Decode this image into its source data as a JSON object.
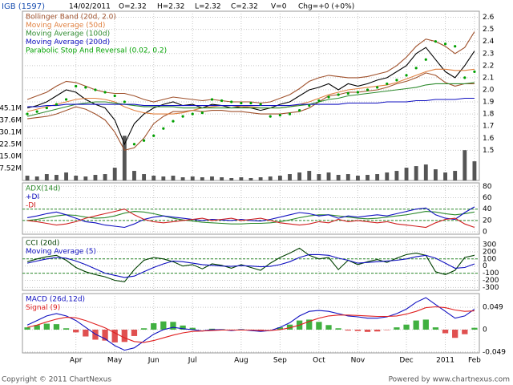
{
  "header": {
    "symbol": "IGB (1597)",
    "date": "14/02/2011",
    "open": "O=2.32",
    "high": "H=2.32",
    "low": "L=2.32",
    "close": "C=2.32",
    "volume": "V=0",
    "change": "Chg=+0 (+0%)"
  },
  "footer": {
    "copyright": "Copyright © 2011 ChartNexus",
    "powered_by": "Powered by www.chartnexus.com"
  },
  "chart_data": [
    {
      "type": "line",
      "categories": [
        null,
        null,
        null,
        null,
        null,
        "Apr",
        null,
        null,
        null,
        "May",
        null,
        null,
        null,
        "Jun",
        null,
        null,
        null,
        "Jul",
        null,
        null,
        null,
        null,
        "Aug",
        null,
        null,
        null,
        "Sep",
        null,
        null,
        null,
        "Oct",
        null,
        null,
        null,
        "Nov",
        null,
        null,
        null,
        null,
        "Dec",
        null,
        null,
        null,
        "2011",
        null,
        null,
        "Feb"
      ],
      "ylim": [
        1.25,
        2.65
      ],
      "yticks": [
        1.5,
        1.6,
        1.7,
        1.8,
        1.9,
        {
          "value": 2,
          "label": "2.0"
        },
        2.1,
        2.2,
        2.3,
        2.4,
        2.5,
        2.6
      ],
      "grid": true,
      "volume": {
        "color": "#555555",
        "ylim": [
          0,
          106
        ],
        "yticks": [
          {
            "value": 7.52,
            "label": "7.52M"
          },
          {
            "value": 15.0,
            "label": "15.0M"
          },
          {
            "value": 22.5,
            "label": "22.5M"
          },
          {
            "value": 30.1,
            "label": "30.1M"
          },
          {
            "value": 37.6,
            "label": "37.6M"
          },
          {
            "value": 45.1,
            "label": "45.1M"
          }
        ],
        "values": [
          3,
          2.5,
          4,
          3.5,
          5,
          3,
          2.5,
          3.5,
          4,
          8,
          28,
          6,
          4,
          3,
          2.5,
          3,
          2,
          2.5,
          2,
          2.5,
          2,
          1.5,
          2,
          1.5,
          2,
          2.5,
          3,
          4,
          5,
          6,
          4,
          5,
          3.5,
          4,
          3,
          3.5,
          4,
          5,
          6,
          8,
          9,
          10,
          7,
          5,
          6,
          19,
          12
        ]
      },
      "series": [
        {
          "color": "#000000",
          "values": [
            1.85,
            1.87,
            1.9,
            1.95,
            2.0,
            1.98,
            1.92,
            1.88,
            1.85,
            1.75,
            1.55,
            1.72,
            1.8,
            1.85,
            1.88,
            1.9,
            1.87,
            1.88,
            1.85,
            1.88,
            1.87,
            1.85,
            1.86,
            1.85,
            1.83,
            1.85,
            1.88,
            1.9,
            1.95,
            2.0,
            2.02,
            2.05,
            2.0,
            2.05,
            2.03,
            2.05,
            2.08,
            2.1,
            2.15,
            2.2,
            2.3,
            2.35,
            2.25,
            2.15,
            2.1,
            2.2,
            2.32
          ]
        },
        {
          "name": "Bollinger Band (20d, 2.0)",
          "color": "#a0522d",
          "values": [
            1.92,
            1.95,
            1.98,
            2.03,
            2.07,
            2.06,
            2.03,
            2.0,
            1.98,
            1.97,
            1.97,
            1.95,
            1.92,
            1.9,
            1.92,
            1.94,
            1.93,
            1.92,
            1.91,
            1.92,
            1.91,
            1.9,
            1.9,
            1.9,
            1.89,
            1.9,
            1.93,
            1.96,
            2.01,
            2.07,
            2.1,
            2.12,
            2.11,
            2.1,
            2.1,
            2.11,
            2.13,
            2.15,
            2.2,
            2.27,
            2.36,
            2.42,
            2.4,
            2.36,
            2.3,
            2.35,
            2.48
          ],
          "lower": [
            1.76,
            1.77,
            1.78,
            1.8,
            1.83,
            1.86,
            1.84,
            1.8,
            1.75,
            1.65,
            1.5,
            1.52,
            1.6,
            1.72,
            1.78,
            1.82,
            1.82,
            1.83,
            1.82,
            1.83,
            1.83,
            1.82,
            1.82,
            1.81,
            1.8,
            1.8,
            1.8,
            1.81,
            1.82,
            1.85,
            1.9,
            1.95,
            1.96,
            1.98,
            1.98,
            1.99,
            2.0,
            2.02,
            2.05,
            2.07,
            2.1,
            2.14,
            2.12,
            2.06,
            2.03,
            2.05,
            2.05
          ]
        },
        {
          "name": "Moving Average (50d)",
          "color": "#e08040",
          "values": [
            1.82,
            1.84,
            1.86,
            1.88,
            1.9,
            1.92,
            1.93,
            1.93,
            1.92,
            1.9,
            1.86,
            1.83,
            1.81,
            1.8,
            1.8,
            1.8,
            1.81,
            1.83,
            1.85,
            1.86,
            1.87,
            1.87,
            1.86,
            1.86,
            1.85,
            1.85,
            1.85,
            1.86,
            1.88,
            1.9,
            1.93,
            1.96,
            1.98,
            2.0,
            2.01,
            2.02,
            2.03,
            2.04,
            2.06,
            2.09,
            2.12,
            2.15,
            2.17,
            2.17,
            2.16,
            2.16,
            2.17
          ]
        },
        {
          "name": "Moving Average (100d)",
          "color": "#2e8b2e",
          "values": [
            1.78,
            1.8,
            1.82,
            1.84,
            1.86,
            1.88,
            1.89,
            1.9,
            1.9,
            1.89,
            1.88,
            1.87,
            1.86,
            1.86,
            1.86,
            1.86,
            1.85,
            1.85,
            1.85,
            1.85,
            1.85,
            1.85,
            1.85,
            1.85,
            1.85,
            1.85,
            1.85,
            1.86,
            1.87,
            1.88,
            1.9,
            1.92,
            1.93,
            1.95,
            1.96,
            1.97,
            1.98,
            1.99,
            2.0,
            2.01,
            2.02,
            2.04,
            2.05,
            2.05,
            2.05,
            2.05,
            2.06
          ]
        },
        {
          "name": "Moving Average (200d)",
          "color": "#1010c0",
          "values": [
            1.86,
            1.86,
            1.87,
            1.87,
            1.88,
            1.88,
            1.88,
            1.88,
            1.88,
            1.88,
            1.88,
            1.88,
            1.87,
            1.87,
            1.87,
            1.87,
            1.87,
            1.87,
            1.87,
            1.87,
            1.87,
            1.87,
            1.87,
            1.87,
            1.87,
            1.87,
            1.87,
            1.87,
            1.88,
            1.88,
            1.88,
            1.88,
            1.88,
            1.89,
            1.89,
            1.89,
            1.89,
            1.9,
            1.9,
            1.9,
            1.91,
            1.91,
            1.92,
            1.92,
            1.92,
            1.93,
            1.93
          ]
        },
        {
          "name": "Parabolic Stop And Reversal (0.02, 0.2)",
          "color": "#00a000",
          "marker": "dot",
          "values": [
            1.8,
            1.82,
            1.85,
            1.88,
            1.92,
            2.03,
            2.02,
            2.0,
            1.98,
            1.95,
            1.9,
            1.55,
            1.58,
            1.62,
            1.68,
            1.74,
            1.78,
            1.8,
            1.81,
            1.92,
            1.91,
            1.9,
            1.89,
            1.89,
            1.88,
            1.78,
            1.79,
            1.8,
            1.83,
            1.87,
            1.91,
            1.94,
            1.96,
            1.97,
            1.98,
            2.0,
            2.02,
            2.05,
            2.08,
            2.12,
            2.18,
            2.25,
            2.4,
            2.38,
            2.36,
            2.1,
            2.15
          ]
        }
      ]
    },
    {
      "type": "line",
      "ylim": [
        -4,
        86
      ],
      "yticks": [
        0,
        20,
        40,
        60,
        80
      ],
      "grid": true,
      "ref_lines": [
        20,
        40
      ],
      "series": [
        {
          "name": "ADX(14d)",
          "color": "#2e8b2e",
          "values": [
            20,
            22,
            25,
            28,
            30,
            29,
            26,
            24,
            25,
            28,
            33,
            36,
            35,
            32,
            28,
            24,
            21,
            19,
            17,
            16,
            15,
            14,
            14,
            15,
            15,
            16,
            18,
            21,
            25,
            28,
            30,
            30,
            28,
            26,
            24,
            23,
            24,
            26,
            28,
            30,
            33,
            36,
            35,
            32,
            30,
            32,
            35
          ]
        },
        {
          "name": "+DI",
          "color": "#1010c0",
          "values": [
            25,
            28,
            32,
            35,
            30,
            24,
            18,
            16,
            12,
            10,
            8,
            14,
            22,
            26,
            28,
            26,
            24,
            22,
            20,
            22,
            21,
            20,
            22,
            20,
            19,
            22,
            26,
            30,
            34,
            32,
            28,
            30,
            24,
            28,
            26,
            28,
            30,
            28,
            32,
            36,
            40,
            42,
            30,
            24,
            22,
            34,
            44
          ]
        },
        {
          "name": "-DI",
          "color": "#d02020",
          "values": [
            20,
            18,
            15,
            12,
            14,
            18,
            24,
            28,
            32,
            36,
            40,
            30,
            22,
            18,
            16,
            18,
            20,
            22,
            24,
            20,
            22,
            24,
            20,
            22,
            24,
            20,
            16,
            14,
            12,
            14,
            18,
            16,
            22,
            18,
            20,
            18,
            16,
            18,
            14,
            12,
            10,
            8,
            16,
            22,
            24,
            14,
            8
          ]
        }
      ]
    },
    {
      "type": "line",
      "ylim": [
        -340,
        400
      ],
      "yticks": [
        -300,
        -200,
        -100,
        0,
        100,
        200,
        300
      ],
      "grid": true,
      "ref_lines": [
        -100,
        100
      ],
      "series": [
        {
          "name": "CCI (20d)",
          "color": "#004000",
          "values": [
            60,
            100,
            130,
            150,
            80,
            -20,
            -80,
            -120,
            -150,
            -200,
            -220,
            -50,
            80,
            120,
            100,
            60,
            0,
            20,
            -40,
            30,
            10,
            -30,
            20,
            -20,
            -60,
            40,
            120,
            180,
            250,
            150,
            100,
            120,
            -50,
            80,
            20,
            60,
            90,
            50,
            110,
            160,
            180,
            150,
            -80,
            -120,
            -60,
            120,
            150
          ]
        },
        {
          "name": "Moving Average (5)",
          "color": "#1010c0",
          "values": [
            40,
            70,
            100,
            120,
            110,
            70,
            20,
            -40,
            -100,
            -130,
            -160,
            -140,
            -80,
            -20,
            30,
            70,
            60,
            40,
            20,
            10,
            0,
            -5,
            5,
            0,
            -10,
            -5,
            20,
            60,
            120,
            160,
            160,
            150,
            110,
            80,
            40,
            50,
            60,
            70,
            80,
            100,
            130,
            150,
            110,
            40,
            -30,
            -20,
            30
          ]
        }
      ]
    },
    {
      "type": "line",
      "ylim": [
        -0.051,
        0.079
      ],
      "yticks": [
        -0.049,
        0,
        0.049
      ],
      "grid": true,
      "bars": {
        "color_up": "#40b040",
        "color_down": "#e05050",
        "values": [
          0.005,
          0.01,
          0.013,
          0.012,
          0.003,
          -0.006,
          -0.015,
          -0.022,
          -0.024,
          -0.028,
          -0.027,
          -0.014,
          0.003,
          0.014,
          0.018,
          0.017,
          0.009,
          0.004,
          0.0,
          0.002,
          0.001,
          -0.001,
          0.001,
          -0.001,
          -0.002,
          0.0,
          0.005,
          0.011,
          0.02,
          0.022,
          0.017,
          0.01,
          0.003,
          -0.002,
          -0.003,
          -0.005,
          -0.004,
          -0.001,
          0.005,
          0.011,
          0.02,
          0.022,
          0.005,
          -0.008,
          -0.018,
          -0.01,
          0.004
        ]
      },
      "series": [
        {
          "name": "MACD (26d,12d)",
          "color": "#1010c0",
          "values": [
            0.01,
            0.02,
            0.03,
            0.035,
            0.03,
            0.02,
            0.005,
            -0.01,
            -0.02,
            -0.035,
            -0.045,
            -0.04,
            -0.025,
            -0.01,
            0.0,
            0.005,
            0.002,
            0.0,
            -0.003,
            0.0,
            0.0,
            -0.002,
            0.0,
            -0.002,
            -0.004,
            -0.002,
            0.005,
            0.015,
            0.03,
            0.04,
            0.042,
            0.04,
            0.035,
            0.03,
            0.028,
            0.025,
            0.025,
            0.028,
            0.035,
            0.045,
            0.06,
            0.07,
            0.055,
            0.04,
            0.025,
            0.03,
            0.045
          ]
        },
        {
          "name": "Signal (9)",
          "color": "#e02020",
          "values": [
            0.005,
            0.01,
            0.017,
            0.023,
            0.027,
            0.026,
            0.02,
            0.012,
            0.004,
            -0.007,
            -0.018,
            -0.026,
            -0.028,
            -0.024,
            -0.018,
            -0.012,
            -0.007,
            -0.004,
            -0.003,
            -0.002,
            -0.001,
            -0.001,
            -0.001,
            -0.001,
            -0.002,
            -0.002,
            0.0,
            0.004,
            0.01,
            0.018,
            0.025,
            0.03,
            0.032,
            0.032,
            0.031,
            0.03,
            0.029,
            0.029,
            0.03,
            0.034,
            0.04,
            0.048,
            0.05,
            0.048,
            0.043,
            0.04,
            0.041
          ]
        }
      ]
    }
  ]
}
